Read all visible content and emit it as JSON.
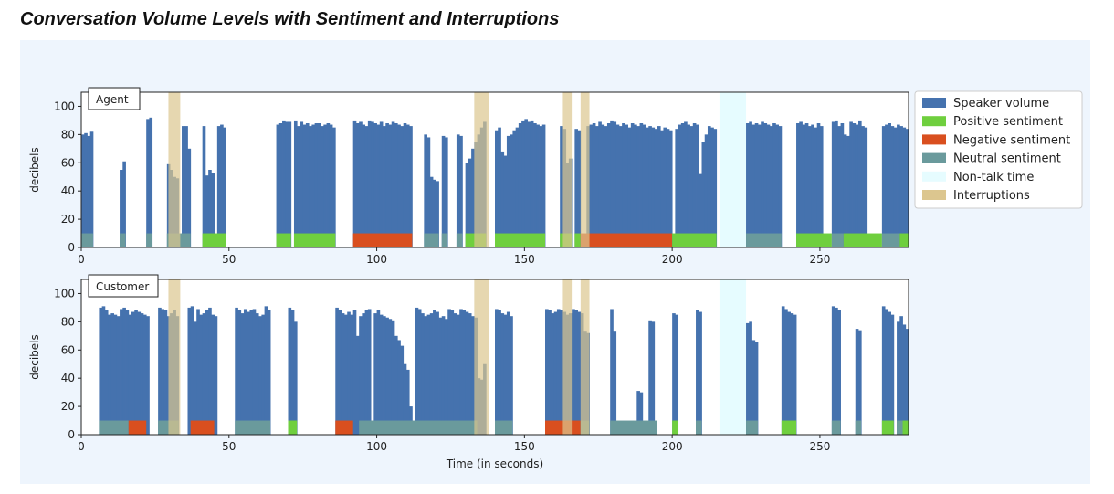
{
  "title": "Conversation Volume Levels with Sentiment and Interruptions",
  "colors": {
    "volume": "#4572ae",
    "positive": "#6fcf3e",
    "negative": "#d94f1f",
    "neutral": "#6a9a9c",
    "nontalk": "#e6fcff",
    "interruption": "#dcc68f"
  },
  "chart_data": [
    {
      "type": "bar",
      "panel": "Agent",
      "ylabel": "decibels",
      "xlabel": "",
      "xlim": [
        0,
        280
      ],
      "ylim": [
        0,
        110
      ],
      "xticks": [
        0,
        50,
        100,
        150,
        200,
        250
      ],
      "yticks": [
        0,
        20,
        40,
        60,
        80,
        100
      ],
      "legend": [
        "Speaker volume",
        "Positive sentiment",
        "Negative sentiment",
        "Neutral sentiment",
        "Non-talk time",
        "Interruptions"
      ],
      "volume_segments": [
        {
          "start": 0,
          "end": 4,
          "levels": [
            80,
            81,
            79,
            82
          ]
        },
        {
          "start": 13,
          "end": 15,
          "levels": [
            55,
            61
          ]
        },
        {
          "start": 22,
          "end": 24,
          "levels": [
            91,
            92
          ]
        },
        {
          "start": 29,
          "end": 33,
          "levels": [
            59,
            55,
            50,
            49
          ]
        },
        {
          "start": 34,
          "end": 37,
          "levels": [
            86,
            86,
            70
          ]
        },
        {
          "start": 41,
          "end": 45,
          "levels": [
            86,
            51,
            55,
            53
          ]
        },
        {
          "start": 46,
          "end": 49,
          "levels": [
            86,
            87,
            85
          ]
        },
        {
          "start": 66,
          "end": 71,
          "levels": [
            87,
            88,
            90,
            89,
            89
          ]
        },
        {
          "start": 72,
          "end": 86,
          "levels": [
            90,
            86,
            89,
            87,
            88,
            86,
            87,
            88,
            88,
            86,
            87,
            88,
            87,
            85
          ]
        },
        {
          "start": 92,
          "end": 112,
          "levels": [
            90,
            88,
            89,
            87,
            86,
            90,
            89,
            88,
            87,
            89,
            86,
            88,
            87,
            89,
            88,
            87,
            86,
            88,
            87,
            86
          ]
        },
        {
          "start": 116,
          "end": 119,
          "levels": [
            80,
            78,
            50
          ]
        },
        {
          "start": 119,
          "end": 121,
          "levels": [
            48,
            47
          ]
        },
        {
          "start": 122,
          "end": 124,
          "levels": [
            79,
            78
          ]
        },
        {
          "start": 127,
          "end": 129,
          "levels": [
            80,
            79
          ]
        },
        {
          "start": 130,
          "end": 137,
          "levels": [
            60,
            63,
            70,
            75,
            80,
            85,
            89
          ]
        },
        {
          "start": 140,
          "end": 142,
          "levels": [
            83,
            85
          ]
        },
        {
          "start": 142,
          "end": 145,
          "levels": [
            68,
            65,
            79
          ]
        },
        {
          "start": 145,
          "end": 157,
          "levels": [
            80,
            83,
            85,
            88,
            90,
            91,
            89,
            90,
            88,
            87,
            86,
            87
          ]
        },
        {
          "start": 162,
          "end": 164,
          "levels": [
            86,
            84
          ]
        },
        {
          "start": 164,
          "end": 166,
          "levels": [
            60,
            63
          ]
        },
        {
          "start": 167,
          "end": 169,
          "levels": [
            84,
            83
          ]
        },
        {
          "start": 171,
          "end": 193,
          "levels": [
            86,
            87,
            88,
            86,
            89,
            87,
            86,
            88,
            90,
            89,
            87,
            86,
            88,
            87,
            85,
            88,
            87,
            86,
            88,
            87,
            85,
            86
          ]
        },
        {
          "start": 193,
          "end": 200,
          "levels": [
            85,
            84,
            86,
            83,
            85,
            84,
            83
          ]
        },
        {
          "start": 201,
          "end": 209,
          "levels": [
            84,
            87,
            88,
            89,
            87,
            86,
            88,
            87
          ]
        },
        {
          "start": 209,
          "end": 212,
          "levels": [
            52,
            75,
            80
          ]
        },
        {
          "start": 212,
          "end": 215,
          "levels": [
            86,
            85,
            84
          ]
        },
        {
          "start": 225,
          "end": 237,
          "levels": [
            88,
            89,
            87,
            88,
            87,
            89,
            88,
            87,
            86,
            88,
            87,
            86
          ]
        },
        {
          "start": 242,
          "end": 251,
          "levels": [
            88,
            89,
            87,
            88,
            86,
            87,
            85,
            88,
            86
          ]
        },
        {
          "start": 254,
          "end": 258,
          "levels": [
            89,
            90,
            86,
            88
          ]
        },
        {
          "start": 258,
          "end": 260,
          "levels": [
            80,
            79
          ]
        },
        {
          "start": 260,
          "end": 266,
          "levels": [
            89,
            88,
            87,
            90,
            86,
            85
          ]
        },
        {
          "start": 271,
          "end": 277,
          "levels": [
            86,
            87,
            88,
            86,
            85,
            87
          ]
        },
        {
          "start": 277,
          "end": 280,
          "levels": [
            86,
            85,
            84
          ]
        }
      ],
      "sentiment_segments": [
        {
          "start": 0,
          "end": 4,
          "sentiment": "neutral"
        },
        {
          "start": 13,
          "end": 15,
          "sentiment": "neutral"
        },
        {
          "start": 22,
          "end": 24,
          "sentiment": "neutral"
        },
        {
          "start": 29,
          "end": 37,
          "sentiment": "neutral"
        },
        {
          "start": 41,
          "end": 49,
          "sentiment": "positive"
        },
        {
          "start": 66,
          "end": 71,
          "sentiment": "positive"
        },
        {
          "start": 72,
          "end": 86,
          "sentiment": "positive"
        },
        {
          "start": 92,
          "end": 112,
          "sentiment": "negative"
        },
        {
          "start": 116,
          "end": 121,
          "sentiment": "neutral"
        },
        {
          "start": 122,
          "end": 124,
          "sentiment": "neutral"
        },
        {
          "start": 127,
          "end": 129,
          "sentiment": "neutral"
        },
        {
          "start": 130,
          "end": 137,
          "sentiment": "positive"
        },
        {
          "start": 140,
          "end": 157,
          "sentiment": "positive"
        },
        {
          "start": 162,
          "end": 166,
          "sentiment": "positive"
        },
        {
          "start": 167,
          "end": 169,
          "sentiment": "positive"
        },
        {
          "start": 169,
          "end": 200,
          "sentiment": "negative"
        },
        {
          "start": 200,
          "end": 215,
          "sentiment": "positive"
        },
        {
          "start": 225,
          "end": 237,
          "sentiment": "neutral"
        },
        {
          "start": 242,
          "end": 254,
          "sentiment": "positive"
        },
        {
          "start": 254,
          "end": 258,
          "sentiment": "neutral"
        },
        {
          "start": 258,
          "end": 271,
          "sentiment": "positive"
        },
        {
          "start": 271,
          "end": 277,
          "sentiment": "neutral"
        },
        {
          "start": 277,
          "end": 280,
          "sentiment": "positive"
        }
      ],
      "nontalk": [
        {
          "start": 216,
          "end": 225
        }
      ],
      "interruptions": [
        {
          "start": 29.5,
          "end": 33.5
        },
        {
          "start": 133,
          "end": 138
        },
        {
          "start": 163,
          "end": 166
        },
        {
          "start": 169,
          "end": 172
        }
      ]
    },
    {
      "type": "bar",
      "panel": "Customer",
      "ylabel": "decibels",
      "xlabel": "Time (in seconds)",
      "xlim": [
        0,
        280
      ],
      "ylim": [
        0,
        110
      ],
      "xticks": [
        0,
        50,
        100,
        150,
        200,
        250
      ],
      "yticks": [
        0,
        20,
        40,
        60,
        80,
        100
      ],
      "volume_segments": [
        {
          "start": 6,
          "end": 11,
          "levels": [
            90,
            91,
            88,
            85,
            86
          ]
        },
        {
          "start": 11,
          "end": 17,
          "levels": [
            85,
            84,
            89,
            90,
            88,
            85
          ]
        },
        {
          "start": 17,
          "end": 23,
          "levels": [
            87,
            88,
            87,
            86,
            85,
            84
          ]
        },
        {
          "start": 26,
          "end": 29,
          "levels": [
            90,
            89,
            88
          ]
        },
        {
          "start": 29,
          "end": 33,
          "levels": [
            84,
            86,
            88,
            84
          ]
        },
        {
          "start": 36,
          "end": 39,
          "levels": [
            90,
            91,
            80
          ]
        },
        {
          "start": 39,
          "end": 42,
          "levels": [
            89,
            85,
            86
          ]
        },
        {
          "start": 42,
          "end": 46,
          "levels": [
            88,
            90,
            85,
            84
          ]
        },
        {
          "start": 52,
          "end": 57,
          "levels": [
            90,
            88,
            86,
            89,
            87
          ]
        },
        {
          "start": 57,
          "end": 61,
          "levels": [
            88,
            89,
            86,
            84
          ]
        },
        {
          "start": 61,
          "end": 64,
          "levels": [
            85,
            91,
            88
          ]
        },
        {
          "start": 70,
          "end": 73,
          "levels": [
            90,
            88,
            80
          ]
        },
        {
          "start": 86,
          "end": 91,
          "levels": [
            90,
            88,
            86,
            85,
            87
          ]
        },
        {
          "start": 91,
          "end": 94,
          "levels": [
            85,
            88,
            70
          ]
        },
        {
          "start": 94,
          "end": 98,
          "levels": [
            84,
            86,
            88,
            89
          ]
        },
        {
          "start": 99,
          "end": 102,
          "levels": [
            86,
            88,
            85
          ]
        },
        {
          "start": 102,
          "end": 105,
          "levels": [
            84,
            83,
            82
          ]
        },
        {
          "start": 105,
          "end": 107,
          "levels": [
            81,
            70
          ]
        },
        {
          "start": 107,
          "end": 110,
          "levels": [
            67,
            63,
            50
          ]
        },
        {
          "start": 110,
          "end": 112,
          "levels": [
            46,
            20
          ]
        },
        {
          "start": 113,
          "end": 117,
          "levels": [
            90,
            89,
            86,
            84
          ]
        },
        {
          "start": 117,
          "end": 121,
          "levels": [
            85,
            86,
            88,
            87
          ]
        },
        {
          "start": 121,
          "end": 124,
          "levels": [
            83,
            84,
            82
          ]
        },
        {
          "start": 124,
          "end": 128,
          "levels": [
            89,
            88,
            86,
            85
          ]
        },
        {
          "start": 128,
          "end": 134,
          "levels": [
            89,
            88,
            87,
            86,
            84,
            83
          ]
        },
        {
          "start": 134,
          "end": 137,
          "levels": [
            40,
            39,
            50
          ]
        },
        {
          "start": 140,
          "end": 146,
          "levels": [
            89,
            88,
            86,
            85,
            87,
            84
          ]
        },
        {
          "start": 157,
          "end": 161,
          "levels": [
            89,
            88,
            86,
            87
          ]
        },
        {
          "start": 161,
          "end": 166,
          "levels": [
            89,
            88,
            87,
            85,
            86
          ]
        },
        {
          "start": 166,
          "end": 170,
          "levels": [
            89,
            88,
            87,
            86
          ]
        },
        {
          "start": 170,
          "end": 172,
          "levels": [
            73,
            72
          ]
        },
        {
          "start": 179,
          "end": 181,
          "levels": [
            89,
            73
          ]
        },
        {
          "start": 188,
          "end": 190,
          "levels": [
            31,
            30
          ]
        },
        {
          "start": 192,
          "end": 194,
          "levels": [
            81,
            80
          ]
        },
        {
          "start": 200,
          "end": 202,
          "levels": [
            86,
            85
          ]
        },
        {
          "start": 208,
          "end": 210,
          "levels": [
            88,
            87
          ]
        },
        {
          "start": 225,
          "end": 227,
          "levels": [
            79,
            80
          ]
        },
        {
          "start": 227,
          "end": 229,
          "levels": [
            67,
            66
          ]
        },
        {
          "start": 237,
          "end": 242,
          "levels": [
            91,
            89,
            87,
            86,
            85
          ]
        },
        {
          "start": 254,
          "end": 257,
          "levels": [
            91,
            90,
            88
          ]
        },
        {
          "start": 262,
          "end": 264,
          "levels": [
            75,
            74
          ]
        },
        {
          "start": 271,
          "end": 275,
          "levels": [
            91,
            89,
            87,
            85
          ]
        },
        {
          "start": 276,
          "end": 280,
          "levels": [
            80,
            84,
            78,
            75
          ]
        }
      ],
      "sentiment_segments": [
        {
          "start": 6,
          "end": 16,
          "sentiment": "neutral"
        },
        {
          "start": 16,
          "end": 22,
          "sentiment": "negative"
        },
        {
          "start": 26,
          "end": 33,
          "sentiment": "neutral"
        },
        {
          "start": 37,
          "end": 45,
          "sentiment": "negative"
        },
        {
          "start": 52,
          "end": 64,
          "sentiment": "neutral"
        },
        {
          "start": 70,
          "end": 73,
          "sentiment": "positive"
        },
        {
          "start": 86,
          "end": 92,
          "sentiment": "negative"
        },
        {
          "start": 94,
          "end": 134,
          "sentiment": "neutral"
        },
        {
          "start": 140,
          "end": 146,
          "sentiment": "neutral"
        },
        {
          "start": 157,
          "end": 169,
          "sentiment": "negative"
        },
        {
          "start": 169,
          "end": 172,
          "sentiment": "neutral"
        },
        {
          "start": 179,
          "end": 195,
          "sentiment": "neutral"
        },
        {
          "start": 200,
          "end": 202,
          "sentiment": "positive"
        },
        {
          "start": 208,
          "end": 210,
          "sentiment": "neutral"
        },
        {
          "start": 225,
          "end": 229,
          "sentiment": "neutral"
        },
        {
          "start": 237,
          "end": 242,
          "sentiment": "positive"
        },
        {
          "start": 254,
          "end": 257,
          "sentiment": "neutral"
        },
        {
          "start": 262,
          "end": 264,
          "sentiment": "neutral"
        },
        {
          "start": 271,
          "end": 275,
          "sentiment": "positive"
        },
        {
          "start": 276,
          "end": 278,
          "sentiment": "neutral"
        },
        {
          "start": 278,
          "end": 280,
          "sentiment": "positive"
        }
      ],
      "nontalk": [
        {
          "start": 216,
          "end": 225
        }
      ],
      "interruptions": [
        {
          "start": 29.5,
          "end": 33.5
        },
        {
          "start": 133,
          "end": 138
        },
        {
          "start": 163,
          "end": 166
        },
        {
          "start": 169,
          "end": 172
        }
      ]
    }
  ]
}
